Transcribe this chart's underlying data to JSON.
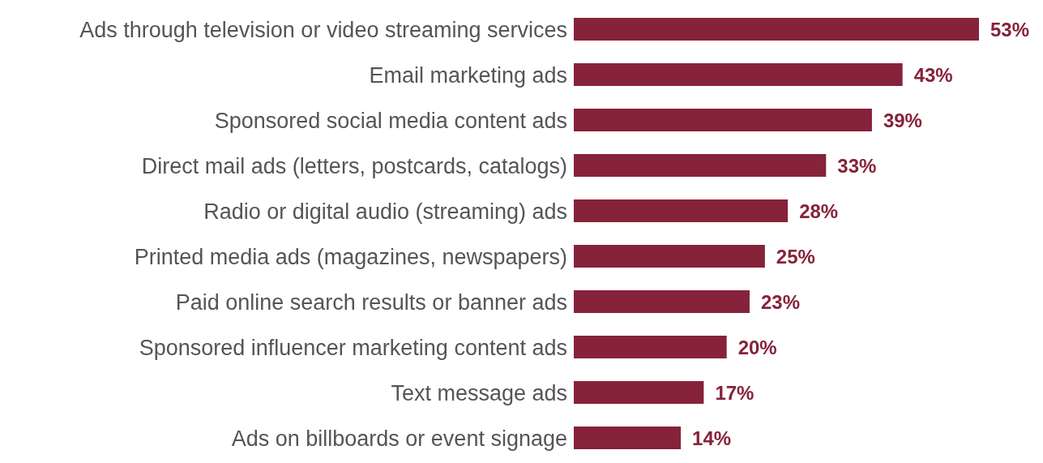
{
  "chart_data": {
    "type": "bar",
    "orientation": "horizontal",
    "categories": [
      "Ads through television or video streaming services",
      "Email marketing ads",
      "Sponsored social media content ads",
      "Direct mail ads (letters, postcards, catalogs)",
      "Radio or digital audio (streaming) ads",
      "Printed media ads (magazines, newspapers)",
      "Paid online search results or banner ads",
      "Sponsored influencer marketing content ads",
      "Text message ads",
      "Ads on billboards or event signage"
    ],
    "values": [
      53,
      43,
      39,
      33,
      28,
      25,
      23,
      20,
      17,
      14
    ],
    "value_labels": [
      "53%",
      "43%",
      "39%",
      "33%",
      "28%",
      "25%",
      "23%",
      "20%",
      "17%",
      "14%"
    ],
    "color": "#86223a"
  }
}
